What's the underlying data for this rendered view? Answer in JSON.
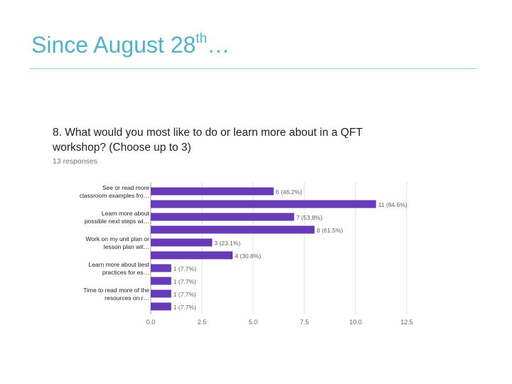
{
  "slide": {
    "title_main": "Since August 28",
    "title_sup": "th",
    "title_tail": "…"
  },
  "question": {
    "text": "8. What would you most like to do or learn more about in a QFT workshop? (Choose up to 3)",
    "responses": "13 responses"
  },
  "colors": {
    "bar": "#673ab7",
    "title": "#4cb3c9",
    "grid": "#e0e0e0",
    "text": "#202124",
    "muted": "#5f6368"
  },
  "chart_data": {
    "type": "bar",
    "orientation": "horizontal",
    "categories": [
      "See or read more classroom examples fro…",
      "",
      "Learn more about possible next steps wi…",
      "",
      "Work on my unit plan or lesson plan wit…",
      "",
      "Learn more about best practices for es…",
      "",
      "Time to read more of the resources on r…",
      ""
    ],
    "values": [
      6,
      11,
      7,
      8,
      3,
      4,
      1,
      1,
      1,
      1
    ],
    "value_labels": [
      "6 (46.2%)",
      "11 (84.6%)",
      "7 (53.8%)",
      "8 (61.5%)",
      "3 (23.1%)",
      "4 (30.8%)",
      "1 (7.7%)",
      "1 (7.7%)",
      "1 (7.7%)",
      "1 (7.7%)"
    ],
    "xticks": [
      "0.0",
      "2.5",
      "5.0",
      "7.5",
      "10.0",
      "12.5"
    ],
    "xlim": [
      0,
      12.5
    ],
    "grid": true
  }
}
